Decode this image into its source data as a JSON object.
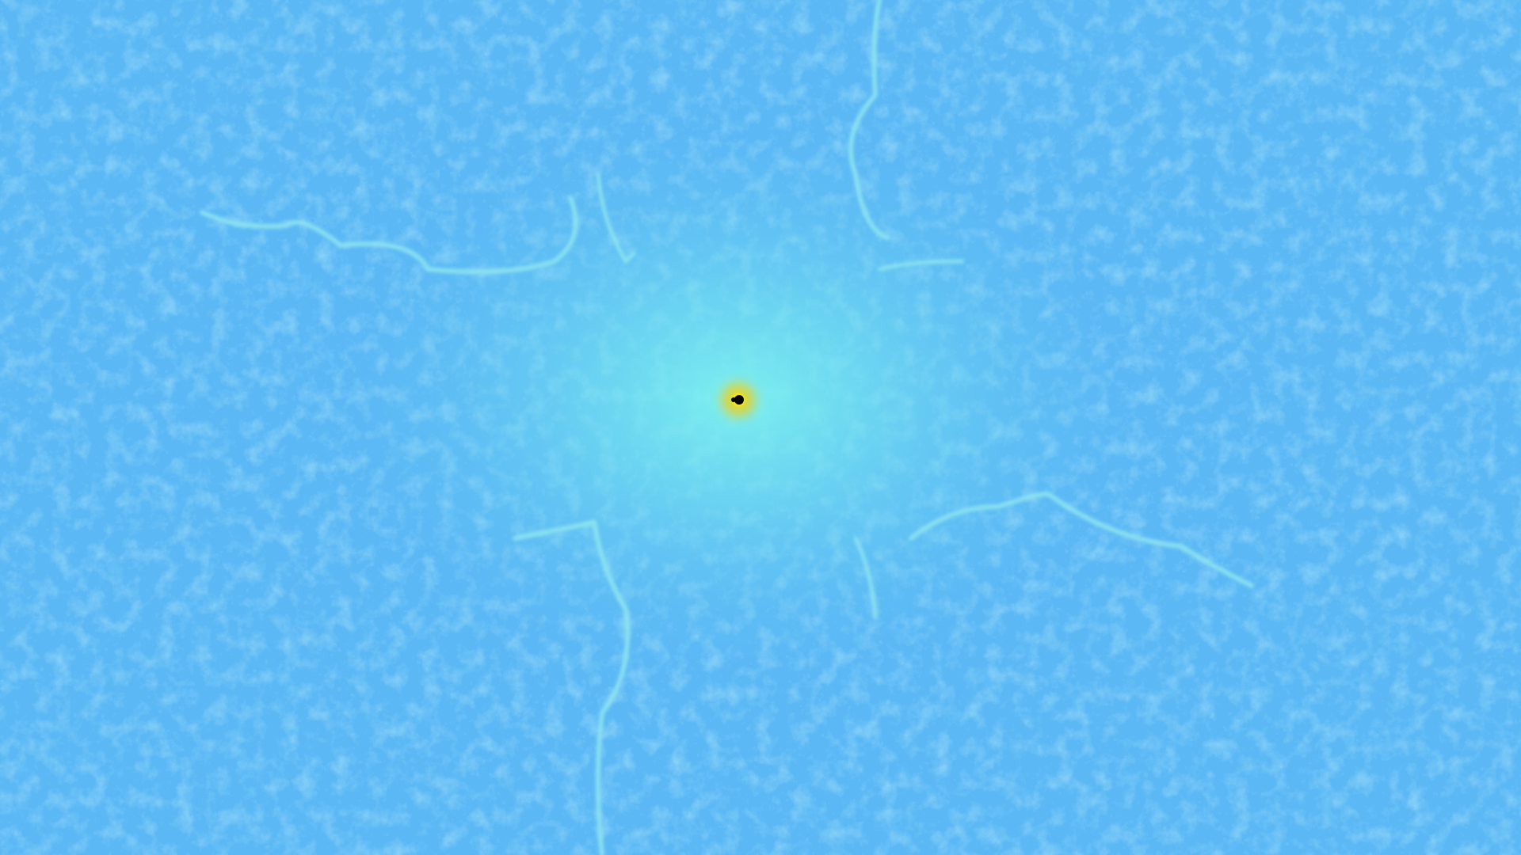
{
  "image": {
    "subject": "mandelbrot-set-deep-zoom",
    "colors": {
      "background": "#5bb8f5",
      "filament": "#8ee4f0",
      "glow": "#7ef3ee",
      "minibrot_body": "#000000",
      "minibrot_halo": "#f2e020"
    }
  }
}
